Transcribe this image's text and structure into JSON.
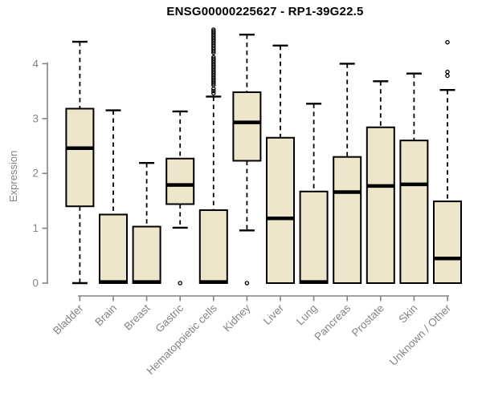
{
  "chart_data": {
    "type": "boxplot",
    "title": "ENSG00000225627 - RP1-39G22.5",
    "ylabel": "Expression",
    "xlabel": "",
    "ylim": [
      0,
      4.65
    ],
    "yticks": [
      0,
      1,
      2,
      3,
      4
    ],
    "grid": false,
    "legend": null,
    "categories": [
      "Bladder",
      "Brain",
      "Breast",
      "Gastric",
      "Hematopoietic cells",
      "Kidney",
      "Liver",
      "Lung",
      "Pancreas",
      "Prostate",
      "Skin",
      "Unknown / Other"
    ],
    "boxes": [
      {
        "category": "Bladder",
        "whisker_low": 0.0,
        "q1": 1.4,
        "median": 2.46,
        "q3": 3.18,
        "whisker_high": 4.4,
        "outliers": []
      },
      {
        "category": "Brain",
        "whisker_low": 0.0,
        "q1": 0.0,
        "median": 0.02,
        "q3": 1.25,
        "whisker_high": 3.15,
        "outliers": []
      },
      {
        "category": "Breast",
        "whisker_low": 0.0,
        "q1": 0.0,
        "median": 0.02,
        "q3": 1.03,
        "whisker_high": 2.19,
        "outliers": []
      },
      {
        "category": "Gastric",
        "whisker_low": 1.01,
        "q1": 1.44,
        "median": 1.79,
        "q3": 2.27,
        "whisker_high": 3.13,
        "outliers": [
          0.0
        ]
      },
      {
        "category": "Hematopoietic cells",
        "whisker_low": 0.0,
        "q1": 0.0,
        "median": 0.02,
        "q3": 1.33,
        "whisker_high": 3.4,
        "outliers": [
          3.46,
          3.5,
          3.54,
          3.61,
          3.64,
          3.67,
          3.7,
          3.73,
          3.76,
          3.79,
          3.82,
          3.85,
          3.88,
          3.91,
          3.94,
          3.97,
          4.0,
          4.03,
          4.06,
          4.09,
          4.12,
          4.2,
          4.23,
          4.26,
          4.29,
          4.32,
          4.35,
          4.38,
          4.41,
          4.44,
          4.47,
          4.5,
          4.53,
          4.56,
          4.59,
          4.62
        ]
      },
      {
        "category": "Kidney",
        "whisker_low": 0.96,
        "q1": 2.23,
        "median": 2.93,
        "q3": 3.48,
        "whisker_high": 4.53,
        "outliers": [
          0.0
        ]
      },
      {
        "category": "Liver",
        "whisker_low": 0.0,
        "q1": 0.0,
        "median": 1.18,
        "q3": 2.65,
        "whisker_high": 4.33,
        "outliers": []
      },
      {
        "category": "Lung",
        "whisker_low": 0.0,
        "q1": 0.0,
        "median": 0.02,
        "q3": 1.67,
        "whisker_high": 3.27,
        "outliers": []
      },
      {
        "category": "Pancreas",
        "whisker_low": 0.0,
        "q1": 0.0,
        "median": 1.66,
        "q3": 2.3,
        "whisker_high": 4.0,
        "outliers": []
      },
      {
        "category": "Prostate",
        "whisker_low": 0.0,
        "q1": 0.0,
        "median": 1.77,
        "q3": 2.84,
        "whisker_high": 3.68,
        "outliers": []
      },
      {
        "category": "Skin",
        "whisker_low": 0.0,
        "q1": 0.0,
        "median": 1.8,
        "q3": 2.6,
        "whisker_high": 3.82,
        "outliers": []
      },
      {
        "category": "Unknown / Other",
        "whisker_low": 0.0,
        "q1": 0.0,
        "median": 0.45,
        "q3": 1.49,
        "whisker_high": 3.52,
        "outliers": [
          3.78,
          3.85,
          4.39
        ]
      }
    ],
    "colors": {
      "box_fill": "#EDE6CA",
      "box_border": "#000000",
      "median": "#000000",
      "whisker": "#000000",
      "outlier": "#000000",
      "axis": "#848484",
      "tick_label": "#848484",
      "title": "#000000",
      "background": "#ffffff"
    }
  }
}
